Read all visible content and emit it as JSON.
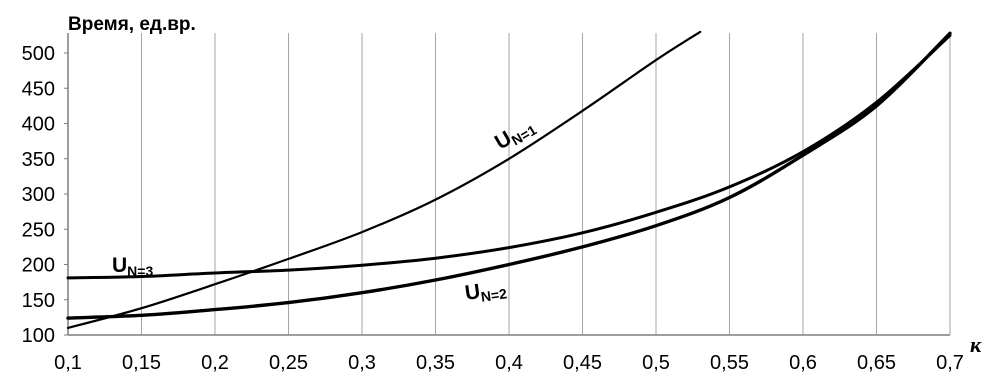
{
  "chart_data": {
    "type": "line",
    "title": "",
    "ylabel": "Время, ед.вр.",
    "xlabel": "к",
    "xlim": [
      0.1,
      0.7
    ],
    "ylim": [
      100,
      530
    ],
    "x_ticks": [
      "0,1",
      "0,15",
      "0,2",
      "0,25",
      "0,3",
      "0,35",
      "0,4",
      "0,45",
      "0,5",
      "0,55",
      "0,6",
      "0,65",
      "0,7"
    ],
    "y_ticks": [
      "100",
      "150",
      "200",
      "250",
      "300",
      "350",
      "400",
      "450",
      "500"
    ],
    "grid": "vertical",
    "legend": "none",
    "series": [
      {
        "name": "U_{N=1}",
        "label_main": "U",
        "label_sub": "N=1",
        "x": [
          0.1,
          0.15,
          0.2,
          0.25,
          0.3,
          0.35,
          0.4,
          0.45,
          0.5,
          0.53
        ],
        "y": [
          110,
          138,
          172,
          208,
          246,
          292,
          350,
          418,
          490,
          530
        ]
      },
      {
        "name": "U_{N=2}",
        "label_main": "U",
        "label_sub": "N=2",
        "x": [
          0.1,
          0.15,
          0.2,
          0.25,
          0.3,
          0.35,
          0.4,
          0.45,
          0.5,
          0.55,
          0.6,
          0.65,
          0.7
        ],
        "y": [
          124,
          128,
          136,
          146,
          160,
          178,
          200,
          225,
          255,
          295,
          355,
          425,
          528
        ]
      },
      {
        "name": "U_{N=3}",
        "label_main": "U",
        "label_sub": "N=3",
        "x": [
          0.1,
          0.15,
          0.2,
          0.25,
          0.3,
          0.35,
          0.4,
          0.45,
          0.5,
          0.55,
          0.6,
          0.65,
          0.7
        ],
        "y": [
          181,
          183,
          188,
          192,
          199,
          209,
          224,
          245,
          274,
          310,
          360,
          430,
          525
        ]
      }
    ]
  }
}
